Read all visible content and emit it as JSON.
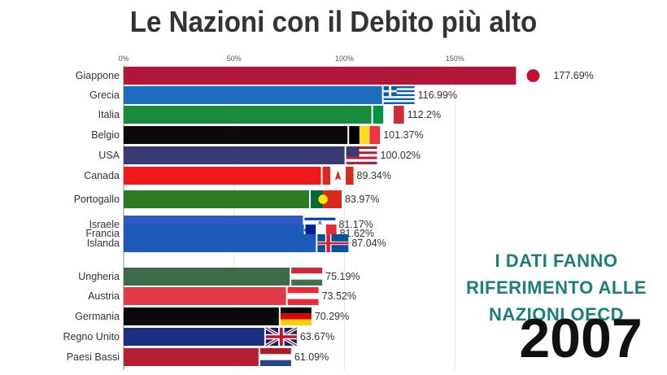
{
  "title": "Le Nazioni con il Debito più alto",
  "note": "I DATI FANNO RIFERIMENTO ALLE NAZIONI OECD",
  "year": "2007",
  "chart_data": {
    "type": "bar",
    "orientation": "horizontal",
    "title": "Le Nazioni con il Debito più alto",
    "xlim": [
      0,
      180
    ],
    "xticks": [
      "0%",
      "50%",
      "100%",
      "150%"
    ],
    "grid": true,
    "categories": [
      "Giappone",
      "Grecia",
      "Italia",
      "Belgio",
      "USA",
      "Canada",
      "Portogallo",
      "Israele",
      "Francia",
      "Islanda",
      "Ungheria",
      "Austria",
      "Germania",
      "Regno Unito",
      "Paesi Bassi"
    ],
    "values": [
      177.69,
      116.99,
      112.2,
      101.37,
      100.02,
      89.34,
      83.97,
      81.17,
      81.62,
      87.04,
      75.19,
      73.52,
      70.29,
      63.67,
      61.09
    ],
    "value_labels": [
      "177.69%",
      "116.99%",
      "112.2%",
      "101.37%",
      "100.02%",
      "89.34%",
      "83.97%",
      "81.17%",
      "81.62%",
      "87.04%",
      "75.19%",
      "73.52%",
      "70.29%",
      "63.67%",
      "61.09%"
    ],
    "colors": [
      "#b0173a",
      "#1f6bbf",
      "#1a8a3c",
      "#0a0a0a",
      "#3a3a72",
      "#f01818",
      "#2d7a24",
      "#2e58c4",
      "#1c5bb8",
      "#1c5bb8",
      "#3d6b4a",
      "#e33a49",
      "#0a0a0a",
      "#1a2f80",
      "#b51e35"
    ],
    "flags": [
      "japan",
      "greece",
      "italy",
      "belgium",
      "usa",
      "canada",
      "portugal",
      "israel",
      "france",
      "iceland",
      "hungary",
      "austria",
      "germany",
      "uk",
      "netherlands"
    ]
  }
}
